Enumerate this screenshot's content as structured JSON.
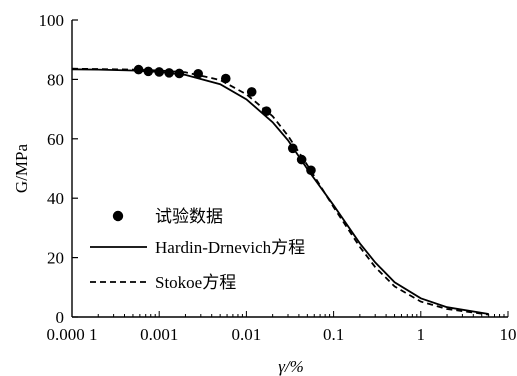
{
  "chart_data": {
    "type": "line",
    "title": "",
    "xlabel": "γ/%",
    "ylabel": "G/MPa",
    "x_scale": "log",
    "xlim": [
      0.0001,
      10
    ],
    "ylim": [
      0,
      100
    ],
    "x_ticks": [
      {
        "value": 0.0001,
        "label": "0.000 1"
      },
      {
        "value": 0.001,
        "label": "0.001"
      },
      {
        "value": 0.01,
        "label": "0.01"
      },
      {
        "value": 0.1,
        "label": "0.1"
      },
      {
        "value": 1,
        "label": "1"
      },
      {
        "value": 10,
        "label": "10"
      }
    ],
    "y_ticks": [
      {
        "value": 0,
        "label": "0"
      },
      {
        "value": 20,
        "label": "20"
      },
      {
        "value": 40,
        "label": "40"
      },
      {
        "value": 60,
        "label": "60"
      },
      {
        "value": 80,
        "label": "80"
      },
      {
        "value": 100,
        "label": "100"
      }
    ],
    "grid": false,
    "legend_position": "left",
    "series": [
      {
        "name": "试验数据",
        "kind": "scatter",
        "color": "#000000",
        "points": [
          [
            0.00058,
            83.3
          ],
          [
            0.00075,
            82.7
          ],
          [
            0.001,
            82.5
          ],
          [
            0.0013,
            82.2
          ],
          [
            0.0017,
            82.0
          ],
          [
            0.0028,
            81.9
          ],
          [
            0.0058,
            80.3
          ],
          [
            0.0115,
            75.8
          ],
          [
            0.017,
            69.3
          ],
          [
            0.034,
            56.8
          ],
          [
            0.043,
            53.0
          ],
          [
            0.055,
            49.4
          ]
        ]
      },
      {
        "name": "Hardin-Drnevich方程",
        "kind": "line",
        "dash": "solid",
        "color": "#000000",
        "points": [
          [
            0.0001,
            83.4
          ],
          [
            0.0002,
            83.3
          ],
          [
            0.0005,
            83.0
          ],
          [
            0.001,
            82.5
          ],
          [
            0.002,
            81.5
          ],
          [
            0.005,
            78.4
          ],
          [
            0.01,
            73.3
          ],
          [
            0.02,
            65.6
          ],
          [
            0.03,
            59.5
          ],
          [
            0.05,
            49.8
          ],
          [
            0.1,
            37.6
          ],
          [
            0.2,
            24.8
          ],
          [
            0.3,
            18.4
          ],
          [
            0.5,
            11.7
          ],
          [
            1,
            6.3
          ],
          [
            2,
            3.3
          ],
          [
            6,
            1.0
          ]
        ]
      },
      {
        "name": "Stokoe方程",
        "kind": "line",
        "dash": "dashed",
        "color": "#000000",
        "points": [
          [
            0.0001,
            83.6
          ],
          [
            0.0005,
            83.3
          ],
          [
            0.001,
            83.0
          ],
          [
            0.002,
            82.4
          ],
          [
            0.005,
            79.8
          ],
          [
            0.01,
            75.0
          ],
          [
            0.02,
            67.6
          ],
          [
            0.03,
            61.0
          ],
          [
            0.05,
            51.1
          ],
          [
            0.1,
            37.0
          ],
          [
            0.2,
            23.6
          ],
          [
            0.3,
            16.8
          ],
          [
            0.5,
            10.3
          ],
          [
            1,
            5.2
          ],
          [
            2,
            2.7
          ],
          [
            6,
            0.8
          ]
        ]
      }
    ]
  }
}
